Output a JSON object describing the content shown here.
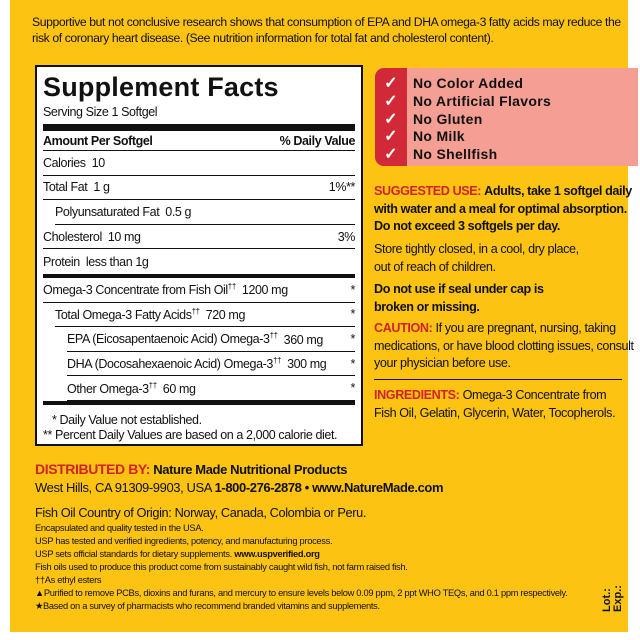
{
  "claim": "Supportive but not conclusive research shows that consumption of EPA and DHA omega-3 fatty acids may reduce the risk of coronary heart disease. (See nutrition information for total fat and cholesterol content).",
  "facts": {
    "title": "Supplement Facts",
    "serving": "Serving Size 1 Softgel",
    "header": {
      "left": "Amount Per Softgel",
      "right": "% Daily Value"
    },
    "rows": [
      {
        "label": "Calories",
        "amount": "10",
        "dv": "",
        "indent": 0
      },
      {
        "label": "Total Fat",
        "amount": "1 g",
        "dv": "1%**",
        "indent": 0
      },
      {
        "label": "Polyunsaturated Fat",
        "amount": "0.5 g",
        "dv": "",
        "indent": 1
      },
      {
        "label": "Cholesterol",
        "amount": "10 mg",
        "dv": "3%",
        "indent": 0
      },
      {
        "label": "Protein",
        "amount": "less than 1g",
        "dv": "",
        "indent": 0
      },
      {
        "label": "Omega-3 Concentrate from Fish Oil",
        "sup": "††",
        "amount": "1200 mg",
        "dv": "*",
        "indent": 0
      },
      {
        "label": "Total Omega-3 Fatty Acids",
        "sup": "††",
        "amount": "720 mg",
        "dv": "*",
        "indent": 1
      },
      {
        "label": "EPA (Eicosapentaenoic Acid) Omega-3",
        "sup": "††",
        "amount": "360 mg",
        "dv": "*",
        "indent": 2
      },
      {
        "label": "DHA (Docosahexaenoic Acid) Omega-3",
        "sup": "††",
        "amount": "300 mg",
        "dv": "*",
        "indent": 2
      },
      {
        "label": "Other Omega-3",
        "sup": "††",
        "amount": "60 mg",
        "dv": "*",
        "indent": 2
      }
    ],
    "footnotes": [
      "* Daily Value not established.",
      "** Percent Daily Values are based on a 2,000 calorie diet."
    ]
  },
  "badges": [
    "No Color Added",
    "No Artificial Flavors",
    "No Gluten",
    "No Milk",
    "No Shellfish"
  ],
  "suggested": {
    "label": "SUGGESTED USE:",
    "text": "Adults, take 1 softgel daily with water and a meal for optimal absorption. Do not exceed 3 softgels per day."
  },
  "storage": "Store tightly closed, in a cool, dry place, out of reach of children.",
  "seal": "Do not use if seal under cap is broken or missing.",
  "caution": {
    "label": "CAUTION:",
    "text": "If you are pregnant, nursing, taking medications, or have blood clotting issues, consult your physician before use."
  },
  "ingredients": {
    "label": "INGREDIENTS:",
    "text": "Omega-3 Concentrate from Fish Oil, Gelatin, Glycerin, Water, Tocopherols."
  },
  "distributor": {
    "label": "DISTRIBUTED BY:",
    "name": "Nature Made Nutritional Products",
    "address": "West Hills, CA 91309-9903, USA",
    "phone": "1-800-276-2878",
    "bullet": "•",
    "web": "www.NatureMade.com"
  },
  "origin": "Fish Oil Country of Origin: Norway, Canada, Colombia or Peru.",
  "notes": [
    "Encapsulated and quality tested in the USA.",
    "USP has tested and verified ingredients, potency, and manufacturing process."
  ],
  "usp": {
    "text": "USP sets official standards for dietary supplements.",
    "link": "www.uspverified.org"
  },
  "notes2": [
    "Fish oils used to produce this product come from sustainably caught wild fish, not farm raised fish.",
    "††As ethyl esters",
    "▲Purified to remove PCBs, dioxins and furans, and mercury to ensure levels below 0.09 ppm, 2 ppt WHO TEQs, and 0.1 ppm respectively.",
    "★Based on a survey of pharmacists who recommend branded vitamins and supplements."
  ],
  "lot": "Lot.:",
  "exp": "Exp.:",
  "colors": {
    "background": "#fdc312",
    "red": "#d2232a",
    "badge_bg": "#f59e94"
  }
}
